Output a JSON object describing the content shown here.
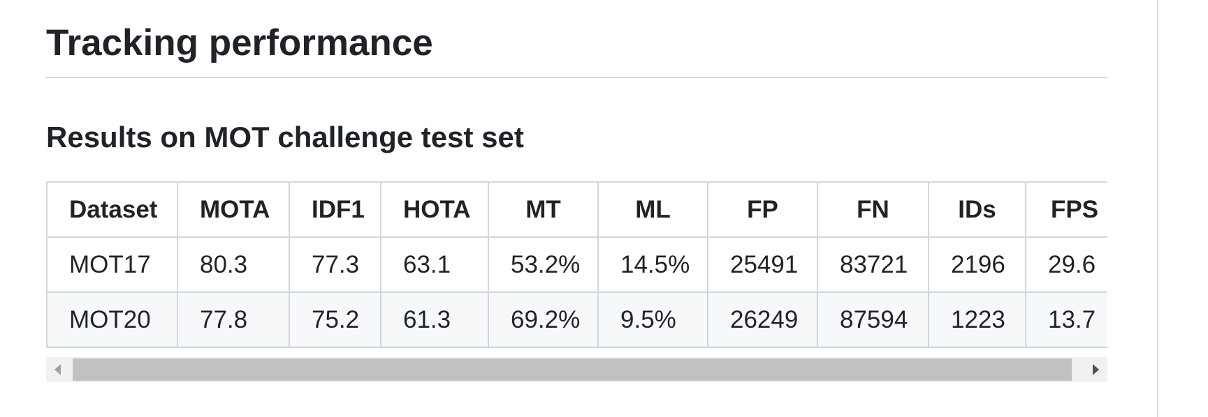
{
  "header": {
    "title": "Tracking performance"
  },
  "section": {
    "title": "Results on MOT challenge test set"
  },
  "table": {
    "headers": [
      "Dataset",
      "MOTA",
      "IDF1",
      "HOTA",
      "MT",
      "ML",
      "FP",
      "FN",
      "IDs",
      "FPS"
    ],
    "rows": [
      [
        "MOT17",
        "80.3",
        "77.3",
        "63.1",
        "53.2%",
        "14.5%",
        "25491",
        "83721",
        "2196",
        "29.6"
      ],
      [
        "MOT20",
        "77.8",
        "75.2",
        "61.3",
        "69.2%",
        "9.5%",
        "26249",
        "87594",
        "1223",
        "13.7"
      ]
    ]
  }
}
